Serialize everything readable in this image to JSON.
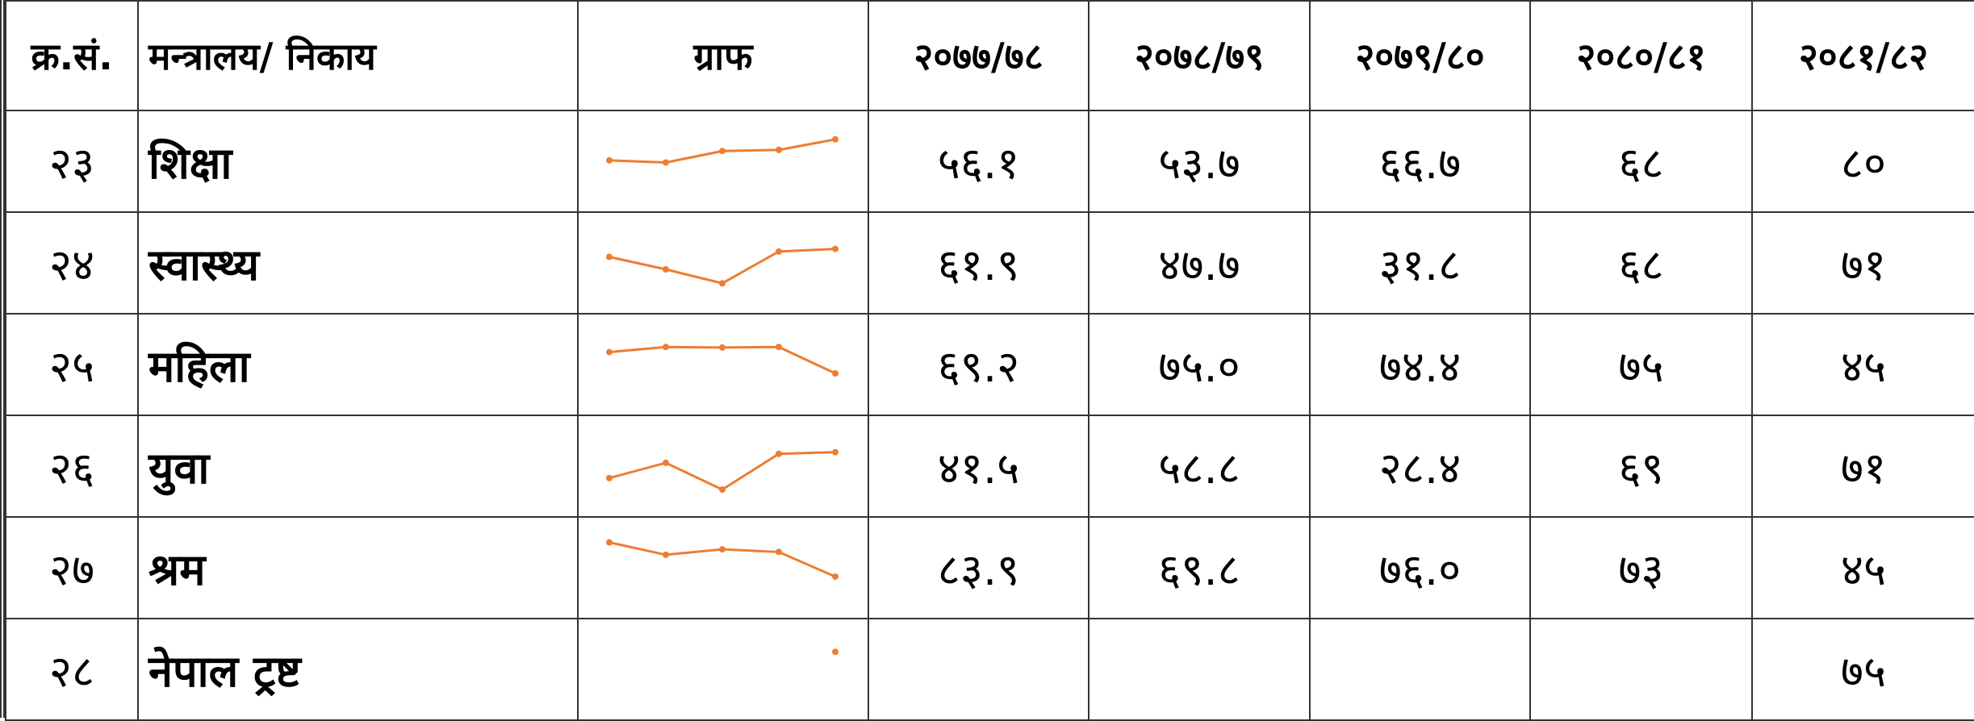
{
  "table": {
    "header": [
      "क्र.सं.",
      "मन्त्रालय/ निकाय",
      "ग्राफ",
      "२०७७/७८",
      "२०७८/७९",
      "२०७९/८०",
      "२०८०/८१",
      "२०८१/८२"
    ],
    "rows": [
      {
        "sn": "२३",
        "name": "शिक्षा",
        "values": [
          56.1,
          53.7,
          66.7,
          68,
          80
        ],
        "value_labels": [
          "५६.१",
          "५३.७",
          "६६.७",
          "६८",
          "८०"
        ]
      },
      {
        "sn": "२४",
        "name": "स्वास्थ्य",
        "values": [
          61.9,
          47.7,
          31.8,
          68,
          71
        ],
        "value_labels": [
          "६१.९",
          "४७.७",
          "३१.८",
          "६८",
          "७१"
        ]
      },
      {
        "sn": "२५",
        "name": "महिला",
        "values": [
          69.2,
          75.0,
          74.4,
          75,
          45
        ],
        "value_labels": [
          "६९.२",
          "७५.०",
          "७४.४",
          "७५",
          "४५"
        ]
      },
      {
        "sn": "२६",
        "name": "युवा",
        "values": [
          41.5,
          58.8,
          28.4,
          69,
          71
        ],
        "value_labels": [
          "४१.५",
          "५८.८",
          "२८.४",
          "६९",
          "७१"
        ]
      },
      {
        "sn": "२७",
        "name": "श्रम",
        "values": [
          83.9,
          69.8,
          76.0,
          73,
          45
        ],
        "value_labels": [
          "८३.९",
          "६९.८",
          "७६.०",
          "७३",
          "४५"
        ]
      },
      {
        "sn": "२८",
        "name": "नेपाल ट्रष्ट",
        "values": [
          null,
          null,
          null,
          null,
          75
        ],
        "value_labels": [
          null,
          null,
          null,
          null,
          "७५"
        ]
      }
    ],
    "spark_color": "#ed7d31"
  }
}
